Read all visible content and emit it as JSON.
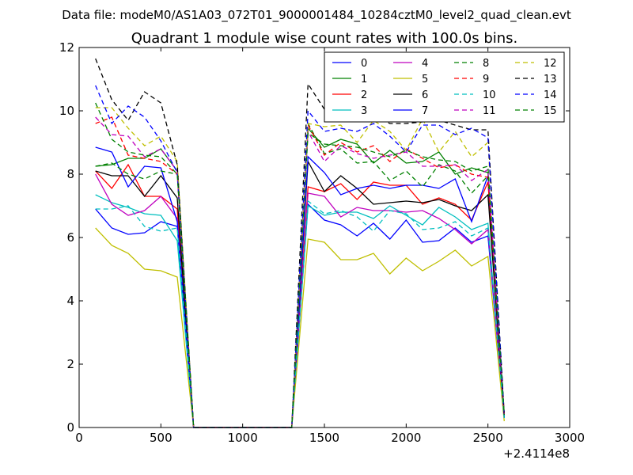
{
  "chart_data": {
    "type": "line",
    "suptitle": "Data file: modeM0/AS1A03_072T01_9000001484_10284cztM0_level2_quad_clean.evt",
    "title": "Quadrant 1 module wise count rates with 100.0s bins.",
    "xlabel": "",
    "ylabel": "",
    "x_offset_label": "+2.4114e8",
    "xlim": [
      0,
      3000
    ],
    "ylim": [
      0,
      12
    ],
    "xticks": [
      0,
      500,
      1000,
      1500,
      2000,
      2500,
      3000
    ],
    "yticks": [
      0,
      2,
      4,
      6,
      8,
      10,
      12
    ],
    "grid": false,
    "legend_position": "top-right",
    "legend_columns": 4,
    "x": [
      100,
      200,
      300,
      400,
      500,
      600,
      700,
      800,
      900,
      1000,
      1100,
      1200,
      1300,
      1400,
      1500,
      1600,
      1700,
      1800,
      1900,
      2000,
      2100,
      2200,
      2300,
      2400,
      2500,
      2600
    ],
    "series": [
      {
        "name": "0",
        "color": "#0000ff",
        "dashed": false,
        "values": [
          6.9,
          6.3,
          6.1,
          6.15,
          6.5,
          6.35,
          0,
          0,
          0,
          0,
          0,
          0,
          0,
          7.05,
          6.55,
          6.4,
          6.05,
          6.45,
          5.95,
          6.55,
          5.85,
          5.9,
          6.3,
          5.85,
          6.05,
          0.3
        ]
      },
      {
        "name": "1",
        "color": "#008000",
        "dashed": false,
        "values": [
          8.25,
          8.3,
          8.5,
          8.5,
          8.8,
          8.1,
          0,
          0,
          0,
          0,
          0,
          0,
          0,
          9.45,
          8.85,
          9.1,
          8.95,
          8.35,
          8.75,
          8.35,
          8.4,
          8.7,
          8.0,
          8.2,
          8.05,
          0.4
        ]
      },
      {
        "name": "2",
        "color": "#ff0000",
        "dashed": false,
        "values": [
          8.1,
          7.55,
          8.3,
          7.3,
          7.3,
          6.9,
          0,
          0,
          0,
          0,
          0,
          0,
          0,
          7.6,
          7.45,
          7.7,
          7.2,
          7.75,
          7.65,
          7.65,
          7.05,
          7.25,
          7.05,
          6.55,
          7.75,
          0.4
        ]
      },
      {
        "name": "3",
        "color": "#00bfbf",
        "dashed": false,
        "values": [
          7.35,
          7.1,
          6.95,
          6.75,
          6.7,
          5.9,
          0,
          0,
          0,
          0,
          0,
          0,
          0,
          7.0,
          6.7,
          6.8,
          6.8,
          6.6,
          7.0,
          6.7,
          6.4,
          6.95,
          6.65,
          6.25,
          6.45,
          0.3
        ]
      },
      {
        "name": "4",
        "color": "#bf00bf",
        "dashed": false,
        "values": [
          8.0,
          7.05,
          6.7,
          6.85,
          7.3,
          6.6,
          0,
          0,
          0,
          0,
          0,
          0,
          0,
          7.4,
          7.3,
          6.65,
          6.95,
          6.85,
          6.85,
          6.8,
          6.85,
          6.6,
          6.25,
          5.8,
          6.25,
          0.3
        ]
      },
      {
        "name": "5",
        "color": "#bfbf00",
        "dashed": false,
        "values": [
          6.3,
          5.75,
          5.5,
          5.0,
          4.95,
          4.75,
          0,
          0,
          0,
          0,
          0,
          0,
          0,
          5.95,
          5.85,
          5.3,
          5.3,
          5.5,
          4.85,
          5.35,
          4.95,
          5.25,
          5.6,
          5.1,
          5.4,
          0.2
        ]
      },
      {
        "name": "6",
        "color": "#000000",
        "dashed": false,
        "values": [
          8.1,
          7.95,
          7.95,
          7.3,
          7.95,
          7.25,
          0,
          0,
          0,
          0,
          0,
          0,
          0,
          8.4,
          7.45,
          7.95,
          7.55,
          7.05,
          7.1,
          7.15,
          7.1,
          7.2,
          7.0,
          6.85,
          7.35,
          0.3
        ]
      },
      {
        "name": "7",
        "color": "#0000ff",
        "dashed": false,
        "values": [
          8.85,
          8.7,
          7.6,
          8.25,
          8.2,
          6.5,
          0,
          0,
          0,
          0,
          0,
          0,
          0,
          8.55,
          8.05,
          7.35,
          7.55,
          7.65,
          7.55,
          7.65,
          7.65,
          7.55,
          7.85,
          6.5,
          7.95,
          0.3
        ]
      },
      {
        "name": "8",
        "color": "#008000",
        "dashed": true,
        "values": [
          8.25,
          8.35,
          8.0,
          7.85,
          8.1,
          8.0,
          0,
          0,
          0,
          0,
          0,
          0,
          0,
          9.6,
          8.65,
          8.8,
          8.35,
          8.4,
          7.8,
          8.1,
          7.6,
          8.3,
          8.1,
          7.4,
          7.95,
          0.4
        ]
      },
      {
        "name": "9",
        "color": "#ff0000",
        "dashed": true,
        "values": [
          9.6,
          9.8,
          8.6,
          8.5,
          8.4,
          8.0,
          0,
          0,
          0,
          0,
          0,
          0,
          0,
          9.55,
          8.6,
          9.0,
          8.7,
          8.9,
          8.4,
          8.8,
          8.5,
          8.2,
          8.3,
          8.0,
          7.9,
          0.4
        ]
      },
      {
        "name": "10",
        "color": "#00bfbf",
        "dashed": true,
        "values": [
          6.9,
          6.9,
          7.0,
          6.35,
          6.2,
          6.3,
          0,
          0,
          0,
          0,
          0,
          0,
          0,
          7.15,
          6.75,
          6.85,
          6.65,
          6.2,
          6.85,
          6.75,
          6.25,
          6.3,
          6.5,
          6.05,
          6.3,
          0.3
        ]
      },
      {
        "name": "11",
        "color": "#bf00bf",
        "dashed": true,
        "values": [
          9.8,
          9.25,
          9.2,
          8.55,
          8.8,
          8.1,
          0,
          0,
          0,
          0,
          0,
          0,
          0,
          9.35,
          8.4,
          8.9,
          8.65,
          8.5,
          8.6,
          8.7,
          8.25,
          8.25,
          8.3,
          7.8,
          8.15,
          0.4
        ]
      },
      {
        "name": "12",
        "color": "#bfbf00",
        "dashed": true,
        "values": [
          10.1,
          10.1,
          9.45,
          8.9,
          9.2,
          8.4,
          0,
          0,
          0,
          0,
          0,
          0,
          0,
          9.6,
          9.5,
          9.55,
          9.0,
          9.7,
          9.35,
          8.75,
          9.75,
          8.7,
          9.35,
          8.55,
          9.0,
          0.4
        ]
      },
      {
        "name": "13",
        "color": "#000000",
        "dashed": true,
        "values": [
          11.65,
          10.35,
          9.7,
          10.6,
          10.25,
          8.3,
          0,
          0,
          0,
          0,
          0,
          0,
          0,
          10.85,
          10.05,
          10.0,
          9.8,
          9.85,
          9.6,
          9.6,
          9.65,
          9.7,
          9.55,
          9.4,
          9.4,
          0.4
        ]
      },
      {
        "name": "14",
        "color": "#0000ff",
        "dashed": true,
        "values": [
          10.8,
          9.6,
          10.15,
          9.8,
          9.05,
          8.05,
          0,
          0,
          0,
          0,
          0,
          0,
          0,
          10.0,
          9.35,
          9.45,
          9.35,
          9.6,
          9.2,
          8.7,
          9.55,
          9.55,
          9.25,
          9.45,
          9.15,
          0.4
        ]
      },
      {
        "name": "15",
        "color": "#008000",
        "dashed": true,
        "values": [
          10.25,
          9.1,
          8.7,
          8.6,
          8.55,
          8.0,
          0,
          0,
          0,
          0,
          0,
          0,
          0,
          9.3,
          8.95,
          8.9,
          8.85,
          8.7,
          8.55,
          8.75,
          8.55,
          8.45,
          8.4,
          8.1,
          8.25,
          0.4
        ]
      }
    ]
  }
}
